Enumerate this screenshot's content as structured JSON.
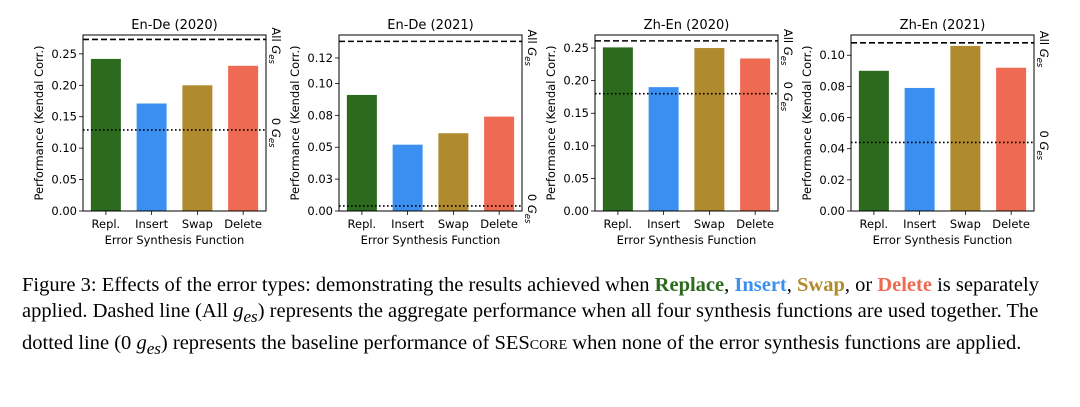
{
  "colors": {
    "repl": "#2c6a1e",
    "insert": "#3b8ff0",
    "swap": "#b08a2e",
    "delete": "#ee6a52"
  },
  "chart_data": [
    {
      "type": "bar",
      "title": "En-De (2020)",
      "categories": [
        "Repl.",
        "Insert",
        "Swap",
        "Delete"
      ],
      "values": [
        0.242,
        0.171,
        0.2,
        0.231
      ],
      "ylabel": "Performance (Kendal Corr.)",
      "xlabel": "Error Synthesis Function",
      "ylim": [
        0,
        0.28
      ],
      "yticks": [
        0.0,
        0.05,
        0.1,
        0.15,
        0.2,
        0.25
      ],
      "ytick_labels": [
        "0.00",
        "0.05",
        "0.10",
        "0.15",
        "0.20",
        "0.25"
      ],
      "all_ges": 0.273,
      "zero_ges": 0.129,
      "all_label": "All",
      "zero_label": "0"
    },
    {
      "type": "bar",
      "title": "En-De (2021)",
      "categories": [
        "Repl.",
        "Insert",
        "Swap",
        "Delete"
      ],
      "values": [
        0.091,
        0.052,
        0.061,
        0.074
      ],
      "ylabel": "Performance (Kendal Corr.)",
      "xlabel": "Error Synthesis Function",
      "ylim": [
        0,
        0.138
      ],
      "yticks": [
        0.0,
        0.025,
        0.05,
        0.075,
        0.1,
        0.12
      ],
      "ytick_labels": [
        "0.00",
        "0.03",
        "0.05",
        "0.08",
        "0.10",
        "0.12"
      ],
      "all_ges": 0.133,
      "zero_ges": 0.004,
      "all_label": "All",
      "zero_label": "0"
    },
    {
      "type": "bar",
      "title": "Zh-En (2020)",
      "categories": [
        "Repl.",
        "Insert",
        "Swap",
        "Delete"
      ],
      "values": [
        0.251,
        0.19,
        0.25,
        0.234
      ],
      "ylabel": "Performance (Kendal Corr.)",
      "xlabel": "Error Synthesis Function",
      "ylim": [
        0,
        0.27
      ],
      "yticks": [
        0.0,
        0.05,
        0.1,
        0.15,
        0.2,
        0.25
      ],
      "ytick_labels": [
        "0.00",
        "0.05",
        "0.10",
        "0.15",
        "0.20",
        "0.25"
      ],
      "all_ges": 0.261,
      "zero_ges": 0.18,
      "all_label": "All",
      "zero_label": "0"
    },
    {
      "type": "bar",
      "title": "Zh-En (2021)",
      "categories": [
        "Repl.",
        "Insert",
        "Swap",
        "Delete"
      ],
      "values": [
        0.09,
        0.079,
        0.106,
        0.092
      ],
      "ylabel": "Performance (Kendal Corr.)",
      "xlabel": "Error Synthesis Function",
      "ylim": [
        0,
        0.113
      ],
      "yticks": [
        0.0,
        0.02,
        0.04,
        0.06,
        0.08,
        0.1
      ],
      "ytick_labels": [
        "0.00",
        "0.02",
        "0.04",
        "0.06",
        "0.08",
        "0.10"
      ],
      "all_ges": 0.108,
      "zero_ges": 0.044,
      "all_label": "All",
      "zero_label": "0"
    }
  ],
  "caption": {
    "p1": "Figure 3: Effects of the error types: demonstrating the results achieved when ",
    "replace": "Replace",
    "sep1": ", ",
    "insert": "Insert",
    "sep2": ", ",
    "swap": "Swap",
    "sep3": ", or ",
    "delete": "Delete",
    "p2": " is separately applied. Dashed line (All ",
    "g1": "g",
    "sub1": "es",
    "p3": ") represents the aggregate performance when all four synthesis functions are used together. The dotted line (0 ",
    "g2": "g",
    "sub2": "es",
    "p4": ") represents the baseline performance of ",
    "ses": "SES",
    "core": "core",
    "p5": " when none of the error synthesis functions are applied."
  }
}
